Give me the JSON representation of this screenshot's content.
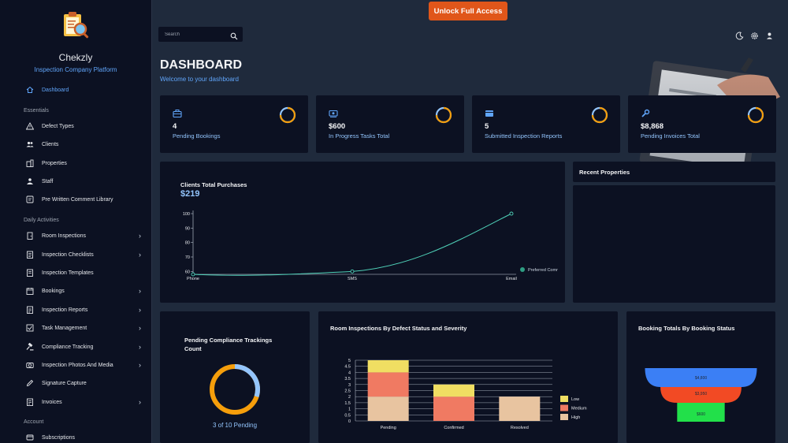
{
  "brand": {
    "name": "Chekzly",
    "subtitle": "Inspection Company Platform"
  },
  "sidebar": {
    "active": "Dashboard",
    "sections": {
      "essentials": "Essentials",
      "daily": "Daily Activities",
      "account": "Account"
    },
    "items": [
      {
        "label": "Defect Types",
        "icon": "warning-icon"
      },
      {
        "label": "Clients",
        "icon": "users-icon"
      },
      {
        "label": "Properties",
        "icon": "building-icon"
      },
      {
        "label": "Staff",
        "icon": "staff-icon"
      },
      {
        "label": "Pre Written Comment Library",
        "icon": "library-icon"
      },
      {
        "label": "Room Inspections",
        "icon": "door-icon"
      },
      {
        "label": "Inspection Checklists",
        "icon": "checklist-icon"
      },
      {
        "label": "Inspection Templates",
        "icon": "template-icon"
      },
      {
        "label": "Bookings",
        "icon": "calendar-icon"
      },
      {
        "label": "Inspection Reports",
        "icon": "report-icon"
      },
      {
        "label": "Task Management",
        "icon": "task-icon"
      },
      {
        "label": "Compliance Tracking",
        "icon": "gavel-icon"
      },
      {
        "label": "Inspection Photos And Media",
        "icon": "camera-icon"
      },
      {
        "label": "Signature Capture",
        "icon": "pen-icon"
      },
      {
        "label": "Invoices",
        "icon": "invoice-icon"
      },
      {
        "label": "Subscriptions",
        "icon": "subscription-icon"
      }
    ]
  },
  "topbar": {
    "unlock_label": "Unlock Full Access",
    "search_placeholder": "Search"
  },
  "header": {
    "title": "DASHBOARD",
    "subtitle": "Welcome to your dashboard"
  },
  "stats": [
    {
      "value": "4",
      "label": "Pending Bookings",
      "icon": "briefcase-icon",
      "ring_color": "#f59e0b"
    },
    {
      "value": "$600",
      "label": "In Progress Tasks Total",
      "icon": "cash-icon",
      "ring_color": "#f59e0b"
    },
    {
      "value": "5",
      "label": "Submitted Inspection Reports",
      "icon": "card-icon",
      "ring_color": "#f59e0b"
    },
    {
      "value": "$8,868",
      "label": "Pending Invoices Total",
      "icon": "wrench-icon",
      "ring_color": "#f59e0b"
    }
  ],
  "purchases": {
    "title": "Clients Total Purchases",
    "total": "$219",
    "legend": "Preferred Comr"
  },
  "recent": {
    "title": "Recent Properties"
  },
  "compliance": {
    "title_line1": "Pending Compliance Trackings",
    "title_line2": "Count",
    "caption": "3 of 10 Pending",
    "pending": 3,
    "total": 10
  },
  "defects": {
    "title": "Room Inspections By Defect Status and Severity"
  },
  "booking_totals": {
    "title": "Booking Totals By Booking Status"
  },
  "chart_data": [
    {
      "type": "line",
      "title": "Clients Total Purchases",
      "categories": [
        "Phone",
        "SMS",
        "Email"
      ],
      "series": [
        {
          "name": "Preferred Comr",
          "values": [
            58,
            60,
            100
          ]
        }
      ],
      "ylim": [
        58,
        100
      ],
      "yticks": [
        60,
        70,
        80,
        90,
        100
      ],
      "color": "#4fd1b8"
    },
    {
      "type": "bar",
      "title": "Room Inspections By Defect Status and Severity",
      "categories": [
        "Pending",
        "Confirmed",
        "Resolved"
      ],
      "stacked": true,
      "series": [
        {
          "name": "High",
          "values": [
            2,
            0,
            2
          ],
          "color": "#e8c4a0"
        },
        {
          "name": "Medium",
          "values": [
            2,
            2,
            0
          ],
          "color": "#f07a62"
        },
        {
          "name": "Low",
          "values": [
            1,
            1,
            0
          ],
          "color": "#f0de62"
        }
      ],
      "ylim": [
        0,
        5
      ],
      "yticks": [
        "0",
        "0.5",
        "1",
        "1.5",
        "2",
        "2.5",
        "3",
        "3.5",
        "4",
        "4.5",
        "5"
      ],
      "legend_labels": [
        "Low",
        "Medium",
        "High"
      ]
    },
    {
      "type": "funnel",
      "title": "Booking Totals By Booking Status",
      "labels": [
        "$4,800",
        "$3,950",
        "$600"
      ],
      "values": [
        4800,
        3950,
        600
      ],
      "colors": [
        "#3b7ff5",
        "#f24a24",
        "#22e04a"
      ]
    }
  ]
}
